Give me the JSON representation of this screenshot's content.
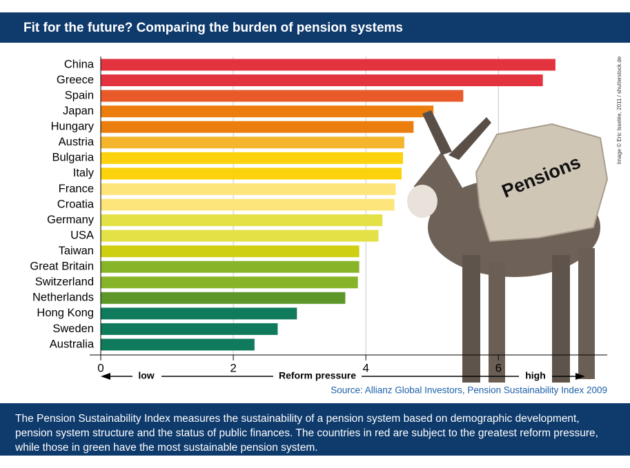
{
  "chart_data": {
    "type": "bar",
    "orientation": "horizontal",
    "title": "Fit for the future? Comparing the burden of pension systems",
    "categories": [
      "China",
      "Greece",
      "Spain",
      "Japan",
      "Hungary",
      "Austria",
      "Bulgaria",
      "Italy",
      "France",
      "Croatia",
      "Germany",
      "USA",
      "Taiwan",
      "Great Britain",
      "Switzerland",
      "Netherlands",
      "Hong Kong",
      "Sweden",
      "Australia"
    ],
    "values": [
      6.86,
      6.67,
      5.47,
      5.02,
      4.72,
      4.58,
      4.56,
      4.54,
      4.45,
      4.43,
      4.25,
      4.19,
      3.9,
      3.9,
      3.88,
      3.69,
      2.96,
      2.67,
      2.32
    ],
    "colors": [
      "#e3333e",
      "#e3333e",
      "#e85a2a",
      "#ec7d0f",
      "#ec7d0f",
      "#f4b52d",
      "#fbd20b",
      "#fbd20b",
      "#fde57c",
      "#fde57c",
      "#e4e146",
      "#e4e146",
      "#cfcf12",
      "#88b42a",
      "#88b42a",
      "#5d9729",
      "#0f7b5c",
      "#0f7b5c",
      "#0f7b5c"
    ],
    "xlim": [
      0,
      7.6
    ],
    "xticks": [
      0,
      2,
      4,
      6
    ],
    "grid": true,
    "axis_low_label": "low",
    "x_label": "Reform pressure",
    "axis_high_label": "high",
    "source": "Source: Allianz Global Investors, Pension Sustainability Index 2009",
    "image_label": "Pensions",
    "image_credit": "Image © Eric Isselée, 2011 / shutterstock.de",
    "description": "The Pension Sustainability Index measures the sustainability of a pension system based on demographic development, pension system structure and the status of public finances. The countries in red are subject to the greatest reform pressure, while those in green have the most sustainable pension system."
  }
}
